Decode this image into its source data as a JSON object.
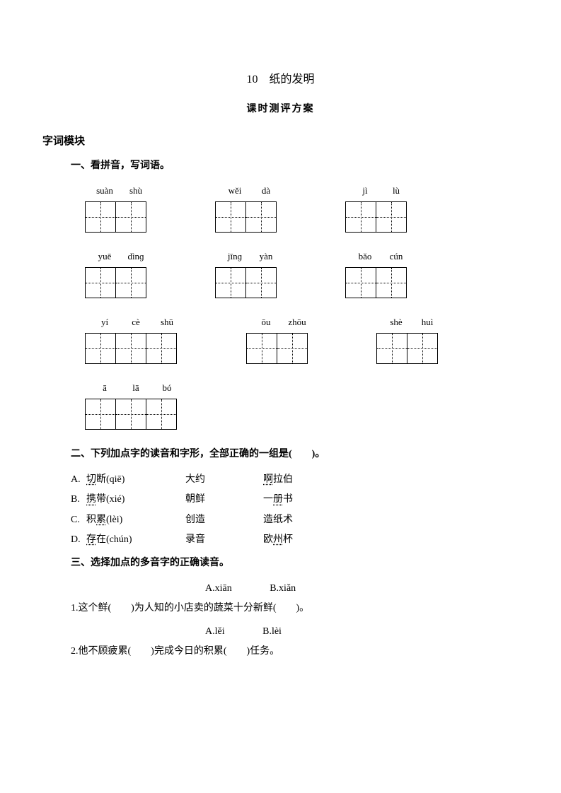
{
  "title": {
    "main": "10　纸的发明",
    "sub": "课时测评方案"
  },
  "section_label": "字词模块",
  "q1": {
    "heading": "一、看拼音，写词语。",
    "rows": [
      [
        {
          "pinyin": [
            "suàn",
            "shù"
          ],
          "cells": 2
        },
        {
          "pinyin": [
            "wěi",
            "dà"
          ],
          "cells": 2
        },
        {
          "pinyin": [
            "jì",
            "lù"
          ],
          "cells": 2
        }
      ],
      [
        {
          "pinyin": [
            "yuē",
            "dìnɡ"
          ],
          "cells": 2
        },
        {
          "pinyin": [
            "jīnɡ",
            "yàn"
          ],
          "cells": 2
        },
        {
          "pinyin": [
            "bǎo",
            "cún"
          ],
          "cells": 2
        }
      ],
      [
        {
          "pinyin": [
            "yí",
            "cè",
            "shū"
          ],
          "cells": 3
        },
        {
          "pinyin": [
            "ōu",
            "zhōu"
          ],
          "cells": 2
        },
        {
          "pinyin": [
            "shè",
            "huì"
          ],
          "cells": 2
        }
      ],
      [
        {
          "pinyin": [
            "ā",
            "lā",
            "bó"
          ],
          "cells": 3
        }
      ]
    ]
  },
  "q2": {
    "heading": "二、下列加点字的读音和字形，全部正确的一组是(　　)。",
    "choices": [
      {
        "label": "A.",
        "w1a": "切",
        "w1b": "断(qiē)",
        "w2": "大约",
        "w3a": "啊",
        "w3b": "拉伯"
      },
      {
        "label": "B.",
        "w1a": "携",
        "w1b": "带(xié)",
        "w2": "朝鲜",
        "w3a": "一",
        "w3b": "册",
        "w3c": "书"
      },
      {
        "label": "C.",
        "w1a": "积",
        "w1b": "累",
        "w1c": "(lèi)",
        "w2": "创造",
        "w3": "造纸术"
      },
      {
        "label": "D.",
        "w1a": "存",
        "w1b": "在(chún)",
        "w2": "录音",
        "w3a": "欧",
        "w3b": "州",
        "w3c": "杯"
      }
    ]
  },
  "q3": {
    "heading": "三、选择加点的多音字的正确读音。",
    "items": [
      {
        "optA": "A.xiān",
        "optB": "B.xiǎn",
        "line_pre": "1.这个鲜(　　)为人知的小店卖的蔬菜十分新鲜(　　)。"
      },
      {
        "optA": "A.lěi",
        "optB": "B.lèi",
        "line_pre": "2.他不顾疲累(　　)完成今日的积累(　　)任务。"
      }
    ]
  }
}
